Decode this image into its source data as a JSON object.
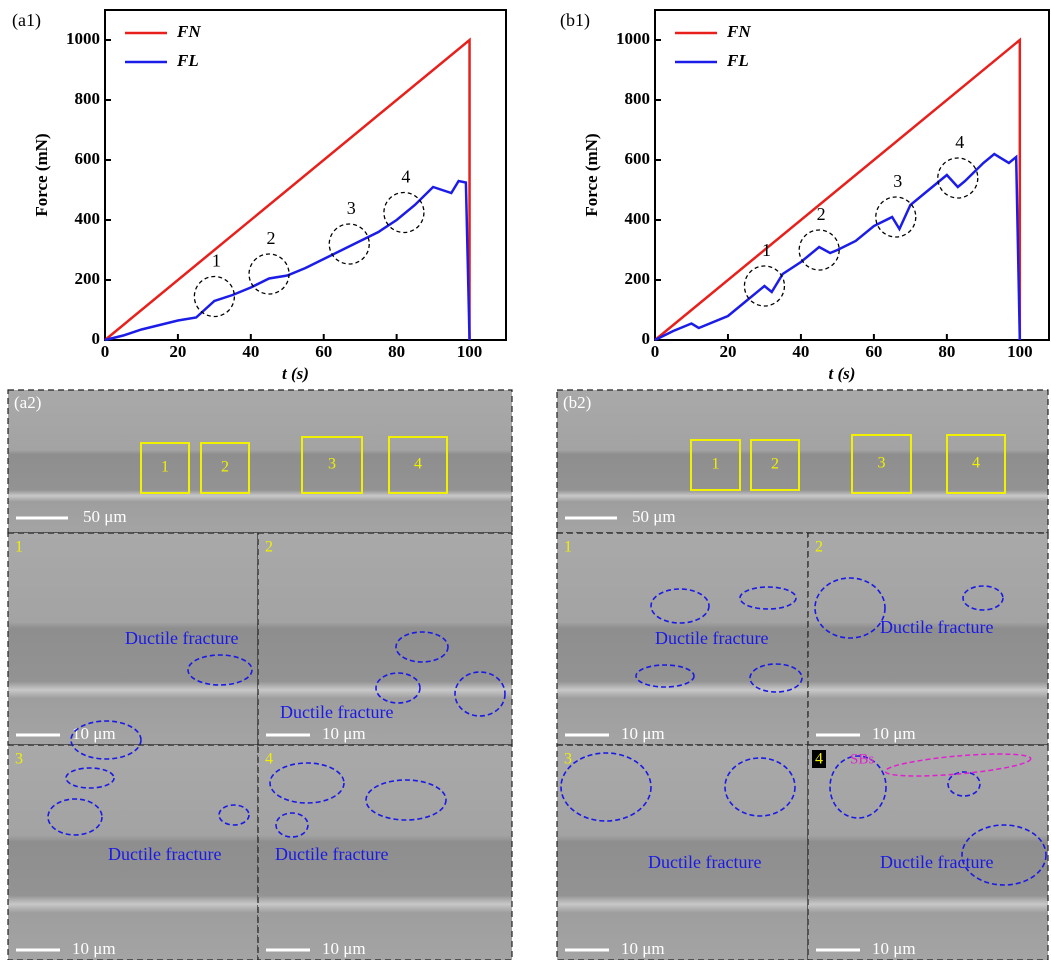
{
  "chart_data": [
    {
      "type": "line",
      "panel_label": "(a1)",
      "x_label": "t (s)",
      "y_label": "Force (mN)",
      "xlim": [
        0,
        110
      ],
      "xticks": [
        0,
        20,
        40,
        60,
        80,
        100
      ],
      "ylim": [
        0,
        1100
      ],
      "yticks": [
        0,
        200,
        400,
        600,
        800,
        1000
      ],
      "annotations": [
        "1",
        "2",
        "3",
        "4"
      ],
      "series": [
        {
          "name": "FN",
          "color": "#e8201c",
          "x": [
            0,
            100,
            100
          ],
          "values": [
            0,
            1000,
            0
          ]
        },
        {
          "name": "FL",
          "color": "#1c1ce8",
          "x": [
            0,
            5,
            10,
            15,
            20,
            25,
            30,
            35,
            40,
            45,
            50,
            55,
            60,
            65,
            70,
            75,
            80,
            85,
            90,
            95,
            97,
            99,
            100
          ],
          "values": [
            0,
            15,
            35,
            50,
            65,
            75,
            130,
            150,
            175,
            205,
            215,
            240,
            270,
            300,
            330,
            360,
            400,
            450,
            510,
            490,
            530,
            525,
            0
          ]
        }
      ]
    },
    {
      "type": "line",
      "panel_label": "(b1)",
      "x_label": "t (s)",
      "y_label": "Force (mN)",
      "xlim": [
        0,
        108
      ],
      "xticks": [
        0,
        20,
        40,
        60,
        80,
        100
      ],
      "ylim": [
        0,
        1100
      ],
      "yticks": [
        0,
        200,
        400,
        600,
        800,
        1000
      ],
      "annotations": [
        "1",
        "2",
        "3",
        "4"
      ],
      "series": [
        {
          "name": "FN",
          "color": "#e8201c",
          "x": [
            0,
            100,
            100
          ],
          "values": [
            0,
            1000,
            0
          ]
        },
        {
          "name": "FL",
          "color": "#1c1ce8",
          "x": [
            0,
            5,
            10,
            12,
            20,
            25,
            30,
            32,
            35,
            40,
            45,
            48,
            50,
            55,
            60,
            65,
            67,
            70,
            75,
            80,
            83,
            85,
            90,
            93,
            97,
            99,
            100
          ],
          "values": [
            0,
            30,
            55,
            40,
            80,
            130,
            180,
            160,
            220,
            260,
            310,
            290,
            300,
            330,
            380,
            410,
            370,
            450,
            500,
            550,
            510,
            530,
            590,
            620,
            590,
            610,
            0
          ]
        }
      ]
    }
  ],
  "micrographs": [
    {
      "label": "(a2)",
      "overview_scale": "50 μm",
      "boxes": [
        "1",
        "2",
        "3",
        "4"
      ],
      "panels": [
        {
          "number": "1",
          "caption": "Ductile fracture",
          "scale": "10 μm"
        },
        {
          "number": "2",
          "caption": "Ductile fracture",
          "scale": "10 μm"
        },
        {
          "number": "3",
          "caption": "Ductile fracture",
          "scale": "10 μm"
        },
        {
          "number": "4",
          "caption": "Ductile fracture",
          "scale": "10 μm"
        }
      ]
    },
    {
      "label": "(b2)",
      "overview_scale": "50 μm",
      "boxes": [
        "1",
        "2",
        "3",
        "4"
      ],
      "panels": [
        {
          "number": "1",
          "caption": "Ductile fracture",
          "scale": "10 μm"
        },
        {
          "number": "2",
          "caption": "Ductile fracture",
          "scale": "10 μm"
        },
        {
          "number": "3",
          "caption": "Ductile fracture",
          "scale": "10 μm"
        },
        {
          "number": "4",
          "caption": "Ductile fracture",
          "scale": "10 μm",
          "note": "SBs"
        }
      ]
    }
  ]
}
